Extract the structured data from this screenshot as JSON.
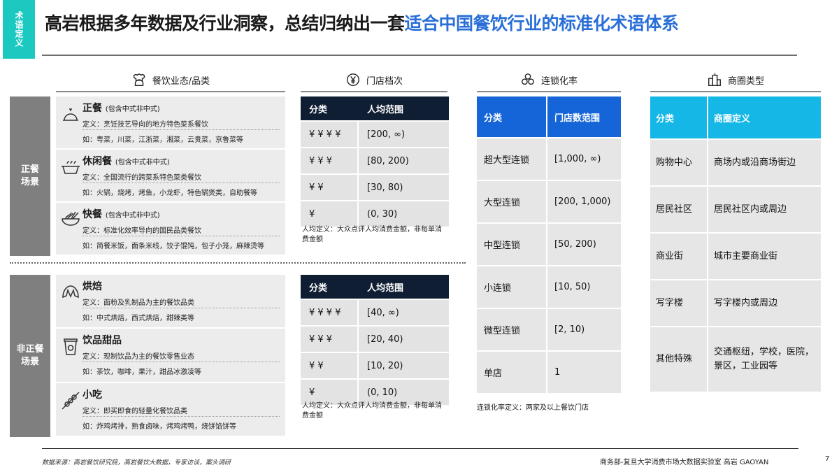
{
  "header": {
    "tag": "术语定义",
    "title_main": "高岩根据多年数据及行业洞察，总结归纳出一套",
    "title_highlight": "适合中国餐饮行业的标准化术语体系"
  },
  "sections": {
    "format": "餐饮业态/品类",
    "tier": "门店档次",
    "chain": "连锁化率",
    "district": "商圈类型"
  },
  "groups": {
    "formal": "正餐场景",
    "informal": "非正餐场景"
  },
  "categories": [
    {
      "icon": "cloche-icon",
      "name": "正餐",
      "qual": "(包含中式非中式)",
      "def": "定义：烹饪技艺导向的地方特色菜系餐饮",
      "ex": "如：粤菜，川菜，江浙菜，湘菜，云贵菜，京鲁菜等"
    },
    {
      "icon": "hotpot-icon",
      "name": "休闲餐",
      "qual": "(包含中式非中式)",
      "def": "定义：全国流行的跨菜系特色菜类餐饮",
      "ex": "如：火锅，烧烤，烤鱼，小龙虾，特色锅煲类，自助餐等"
    },
    {
      "icon": "noodle-bowl-icon",
      "name": "快餐",
      "qual": "(包含中式非中式)",
      "def": "定义：标准化效率导向的国民品类餐饮",
      "ex": "如：简餐米饭，面条米线，饺子馄饨，包子小笼，麻辣烫等"
    },
    {
      "icon": "croissant-icon",
      "name": "烘焙",
      "qual": "",
      "def": "定义：面粉及乳制品为主的餐饮品类",
      "ex": "如：中式烘焙，西式烘焙，甜辣类等"
    },
    {
      "icon": "drink-cup-icon",
      "name": "饮品甜品",
      "qual": "",
      "def": "定义：现制饮品为主的餐饮零售业态",
      "ex": "如：茶饮，咖啡，果汁，甜品冰激凌等"
    },
    {
      "icon": "skewer-icon",
      "name": "小吃",
      "qual": "",
      "def": "定义：即买即食的轻量化餐饮品类",
      "ex": "如：炸鸡烤排，熟食卤味，烤鸡烤鸭，烧饼馅饼等"
    }
  ],
  "tier_tables": [
    {
      "headers": [
        "分类",
        "人均范围"
      ],
      "rows": [
        [
          "¥ ¥ ¥ ¥",
          "[200, ∞)"
        ],
        [
          "¥ ¥ ¥",
          "[80, 200)"
        ],
        [
          "¥ ¥",
          "[30, 80)"
        ],
        [
          "¥",
          "(0, 30)"
        ]
      ],
      "note": "人均定义：大众点评人均消费金额，非每单消费金额"
    },
    {
      "headers": [
        "分类",
        "人均范围"
      ],
      "rows": [
        [
          "¥ ¥ ¥ ¥",
          "[40, ∞)"
        ],
        [
          "¥ ¥ ¥",
          "[20, 40)"
        ],
        [
          "¥ ¥",
          "[10, 20)"
        ],
        [
          "¥",
          "(0, 10)"
        ]
      ],
      "note": "人均定义：大众点评人均消费金额，非每单消费金额"
    }
  ],
  "chain_table": {
    "headers": [
      "分类",
      "门店数范围"
    ],
    "rows": [
      [
        "超大型连锁",
        "[1,000, ∞)"
      ],
      [
        "大型连锁",
        "[200, 1,000)"
      ],
      [
        "中型连锁",
        "[50, 200)"
      ],
      [
        "小连锁",
        "[10, 50)"
      ],
      [
        "微型连锁",
        "[2, 10)"
      ],
      [
        "单店",
        "1"
      ]
    ],
    "note": "连锁化率定义：两家及以上餐饮门店"
  },
  "district_table": {
    "headers": [
      "分类",
      "商圈定义"
    ],
    "rows": [
      [
        "购物中心",
        "商场内或沿商场街边"
      ],
      [
        "居民社区",
        "居民社区内或周边"
      ],
      [
        "商业街",
        "城市主要商业街"
      ],
      [
        "写字楼",
        "写字楼内或周边"
      ],
      [
        "其他特殊",
        "交通枢纽，学校，医院，景区，工业园等"
      ]
    ]
  },
  "footer": {
    "source": "数据来源：高岩餐饮研究院，高岩餐饮大数据，专家访谈，案头调研",
    "org": "商务部-复旦大学消费市场大数据实验室   高岩 GAOYAN",
    "page": "7"
  }
}
